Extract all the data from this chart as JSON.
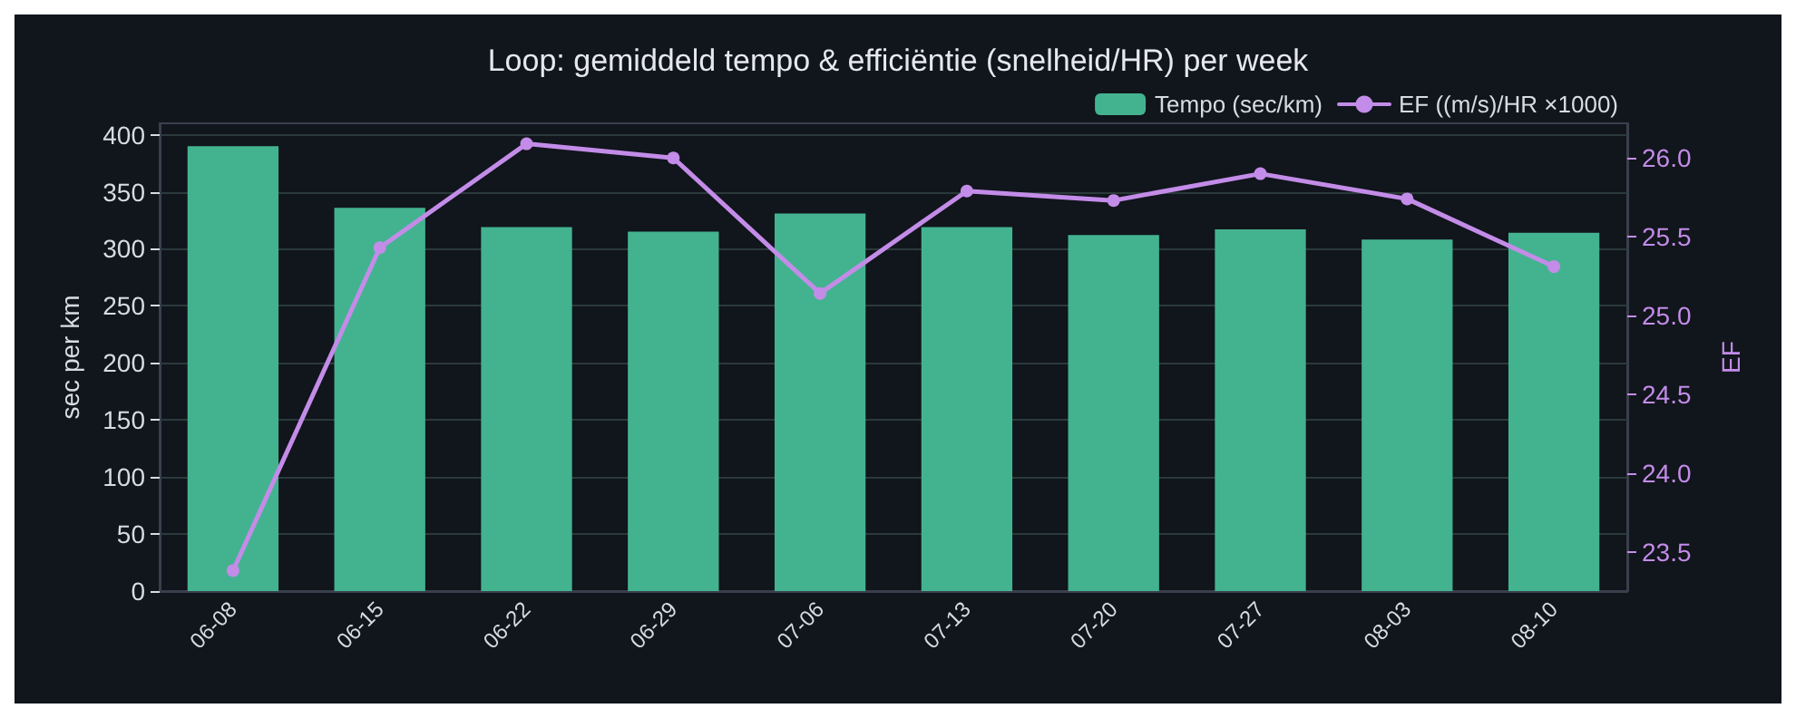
{
  "chart_data": {
    "type": "bar",
    "title": "Loop: gemiddeld tempo & efficiëntie (snelheid/HR) per week",
    "ylabel": "sec per km",
    "y2label": "EF",
    "categories": [
      "06-08",
      "06-15",
      "06-22",
      "06-29",
      "07-06",
      "07-13",
      "07-20",
      "07-27",
      "08-03",
      "08-10"
    ],
    "series": [
      {
        "name": "Tempo (sec/km)",
        "color": "#43b38f",
        "values": [
          390,
          336,
          319,
          315,
          331,
          319,
          312,
          317,
          308,
          314
        ]
      },
      {
        "name": "EF ((m/s)/HR ×1000)",
        "type": "line",
        "axis": "y2",
        "color": "#c38ce8",
        "values": [
          23.38,
          25.43,
          26.09,
          26.0,
          25.14,
          25.79,
          25.73,
          25.9,
          25.74,
          25.31
        ]
      }
    ],
    "ylim": [
      0,
      410
    ],
    "yticks": [
      0,
      50,
      100,
      150,
      200,
      250,
      300,
      350,
      400
    ],
    "y2lim": [
      23.25,
      26.22
    ],
    "y2ticks": [
      23.5,
      {
        "value": 24,
        "label": "24.0"
      },
      24.5,
      {
        "value": 25,
        "label": "25.0"
      },
      25.5,
      {
        "value": 26,
        "label": "26.0"
      }
    ],
    "grid": "y",
    "legend": "top right",
    "marker": "circle",
    "line_style": "solid"
  }
}
